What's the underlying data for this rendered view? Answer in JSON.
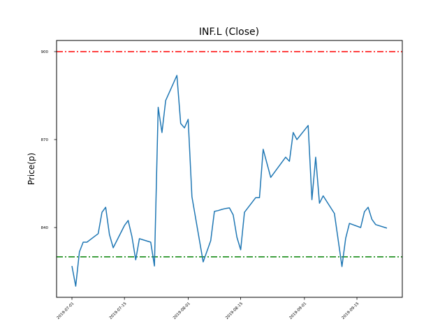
{
  "chart_data": {
    "type": "line",
    "title": "INF.L (Close)",
    "xlabel": "",
    "ylabel": "Price(p)",
    "grid": false,
    "xlim_days_from_start": [
      -4.1,
      88.1
    ],
    "ylim": [
      816.2,
      903.8
    ],
    "start_date": "2019-07-01",
    "x_ticks": [
      {
        "label": "2019-07-01",
        "day": 0
      },
      {
        "label": "2019-07-15",
        "day": 14
      },
      {
        "label": "2019-08-01",
        "day": 31
      },
      {
        "label": "2019-08-15",
        "day": 45
      },
      {
        "label": "2019-09-01",
        "day": 62
      },
      {
        "label": "2019-09-15",
        "day": 76
      }
    ],
    "y_ticks": [
      {
        "label": "840",
        "value": 840
      },
      {
        "label": "870",
        "value": 870
      },
      {
        "label": "900",
        "value": 900
      }
    ],
    "reference_lines": [
      {
        "name": "upper",
        "value": 900,
        "color": "#ff0000"
      },
      {
        "name": "lower",
        "value": 830,
        "color": "#008000"
      }
    ],
    "series": [
      {
        "name": "Close",
        "color": "#1f77b4",
        "days": [
          0,
          1,
          2,
          3,
          4,
          7,
          8,
          9,
          10,
          11,
          14,
          15,
          16,
          17,
          18,
          21,
          22,
          23,
          24,
          25,
          28,
          29,
          30,
          31,
          32,
          35,
          37,
          38,
          39,
          40,
          41,
          42,
          43,
          44,
          45,
          46,
          49,
          50,
          51,
          53,
          57,
          58,
          59,
          60,
          63,
          64,
          65,
          66,
          67,
          70,
          72,
          73,
          74,
          77,
          78,
          79,
          80,
          81,
          84
        ],
        "values": [
          826.9,
          820.0,
          831.7,
          835.0,
          835.0,
          837.9,
          845.2,
          846.9,
          837.6,
          833.1,
          840.7,
          842.4,
          836.9,
          829.0,
          836.2,
          835.0,
          826.9,
          881.0,
          872.4,
          883.3,
          891.9,
          875.5,
          874.0,
          876.9,
          850.5,
          828.3,
          835.5,
          845.5,
          845.8,
          846.2,
          846.5,
          846.7,
          844.3,
          836.7,
          832.4,
          845.2,
          850.2,
          850.2,
          866.7,
          857.1,
          864.0,
          862.6,
          872.4,
          870.0,
          874.8,
          849.5,
          864.0,
          848.3,
          850.8,
          844.8,
          826.7,
          836.3,
          841.4,
          840.0,
          845.4,
          846.9,
          842.8,
          841.0,
          839.8
        ]
      }
    ]
  }
}
